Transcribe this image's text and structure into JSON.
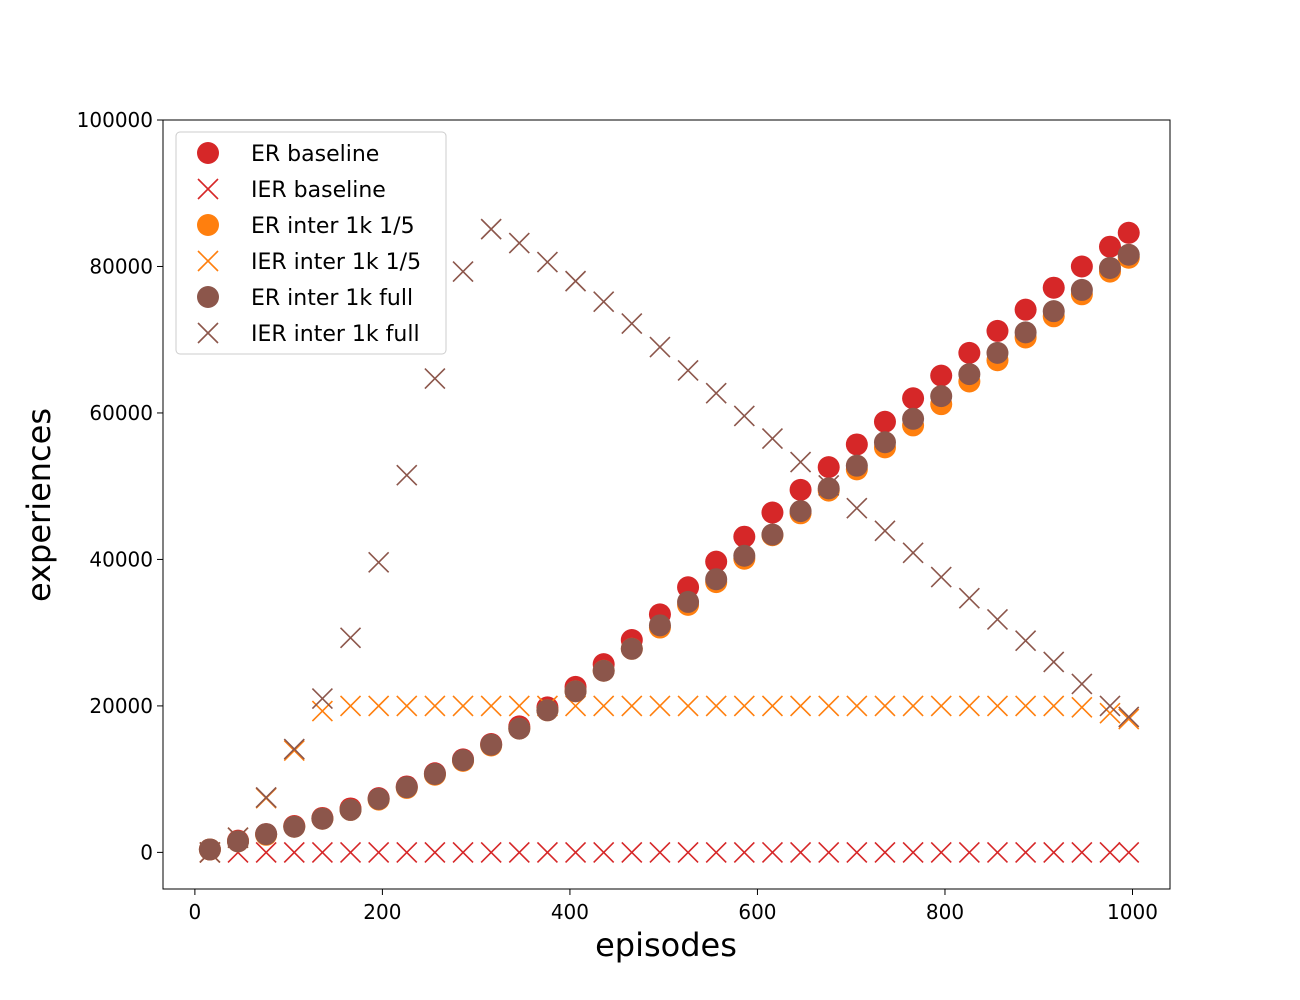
{
  "chart_data": {
    "type": "scatter",
    "xlabel": "episodes",
    "ylabel": "experiences",
    "xlim": [
      -34,
      1040
    ],
    "ylim": [
      -5000,
      100000
    ],
    "xticks": [
      0,
      200,
      400,
      600,
      800,
      1000
    ],
    "yticks": [
      0,
      20000,
      40000,
      60000,
      80000,
      100000
    ],
    "grid": false,
    "legend_position": "upper-left",
    "series": [
      {
        "name": "ER baseline",
        "marker": "circle",
        "color": "#d62728",
        "x": [
          16,
          46,
          76,
          106,
          136,
          166,
          196,
          226,
          256,
          286,
          316,
          346,
          376,
          406,
          436,
          466,
          496,
          526,
          556,
          586,
          616,
          646,
          676,
          706,
          736,
          766,
          796,
          826,
          856,
          886,
          916,
          946,
          976,
          996
        ],
        "y": [
          400,
          1600,
          2500,
          3600,
          4700,
          6000,
          7400,
          9000,
          10800,
          12700,
          14800,
          17200,
          19800,
          22600,
          25700,
          29000,
          32500,
          36200,
          39700,
          43100,
          46400,
          49500,
          52600,
          55700,
          58800,
          62000,
          65100,
          68200,
          71200,
          74100,
          77100,
          80000,
          82700,
          84600
        ]
      },
      {
        "name": "IER baseline",
        "marker": "x",
        "color": "#d62728",
        "x": [
          16,
          46,
          76,
          106,
          136,
          166,
          196,
          226,
          256,
          286,
          316,
          346,
          376,
          406,
          436,
          466,
          496,
          526,
          556,
          586,
          616,
          646,
          676,
          706,
          736,
          766,
          796,
          826,
          856,
          886,
          916,
          946,
          976,
          996
        ],
        "y": [
          0,
          0,
          0,
          0,
          0,
          0,
          0,
          0,
          0,
          0,
          0,
          0,
          0,
          0,
          0,
          0,
          0,
          0,
          0,
          0,
          0,
          0,
          0,
          0,
          0,
          0,
          0,
          0,
          0,
          0,
          0,
          0,
          0,
          0
        ]
      },
      {
        "name": "ER inter 1k 1/5",
        "marker": "circle",
        "color": "#ff7f0e",
        "x": [
          16,
          46,
          76,
          106,
          136,
          166,
          196,
          226,
          256,
          286,
          316,
          346,
          376,
          406,
          436,
          466,
          496,
          526,
          556,
          586,
          616,
          646,
          676,
          706,
          736,
          766,
          796,
          826,
          856,
          886,
          916,
          946,
          976,
          996
        ],
        "y": [
          400,
          1500,
          2400,
          3500,
          4600,
          5800,
          7200,
          8800,
          10600,
          12500,
          14600,
          16900,
          19400,
          22000,
          24800,
          27800,
          30700,
          33800,
          36900,
          40100,
          43300,
          46300,
          49400,
          52300,
          55300,
          58300,
          61200,
          64300,
          67200,
          70300,
          73200,
          76200,
          79300,
          81200
        ]
      },
      {
        "name": "IER inter 1k 1/5",
        "marker": "x",
        "color": "#ff7f0e",
        "x": [
          16,
          46,
          76,
          106,
          136,
          166,
          196,
          226,
          256,
          286,
          316,
          346,
          376,
          406,
          436,
          466,
          496,
          526,
          556,
          586,
          616,
          646,
          676,
          706,
          736,
          766,
          796,
          826,
          856,
          886,
          916,
          946,
          976,
          996
        ],
        "y": [
          0,
          2000,
          7400,
          13900,
          19300,
          20000,
          20000,
          20000,
          20000,
          20000,
          20000,
          20000,
          20000,
          20000,
          20000,
          20000,
          20000,
          20000,
          20000,
          20000,
          20000,
          20000,
          20000,
          20000,
          20000,
          20000,
          20000,
          20000,
          20000,
          20000,
          20000,
          19800,
          19000,
          18200
        ]
      },
      {
        "name": "ER inter 1k full",
        "marker": "circle",
        "color": "#8c564b",
        "x": [
          16,
          46,
          76,
          106,
          136,
          166,
          196,
          226,
          256,
          286,
          316,
          346,
          376,
          406,
          436,
          466,
          496,
          526,
          556,
          586,
          616,
          646,
          676,
          706,
          736,
          766,
          796,
          826,
          856,
          886,
          916,
          946,
          976,
          996
        ],
        "y": [
          400,
          1500,
          2500,
          3500,
          4600,
          5800,
          7300,
          8900,
          10700,
          12600,
          14700,
          16900,
          19400,
          22000,
          24800,
          27800,
          31000,
          34200,
          37300,
          40500,
          43400,
          46600,
          49700,
          52800,
          56000,
          59200,
          62300,
          65300,
          68200,
          71000,
          73900,
          76800,
          79800,
          81600
        ]
      },
      {
        "name": "IER inter 1k full",
        "marker": "x",
        "color": "#8c564b",
        "x": [
          16,
          46,
          76,
          106,
          136,
          166,
          196,
          226,
          256,
          286,
          316,
          346,
          376,
          406,
          436,
          466,
          496,
          526,
          556,
          586,
          616,
          646,
          676,
          706,
          736,
          766,
          796,
          826,
          856,
          886,
          916,
          946,
          976,
          996
        ],
        "y": [
          0,
          2000,
          7500,
          14100,
          21000,
          29300,
          39600,
          51500,
          64700,
          79300,
          85100,
          83200,
          80600,
          78000,
          75200,
          72200,
          69000,
          65800,
          62700,
          59600,
          56500,
          53300,
          50100,
          47000,
          43900,
          40900,
          37600,
          34700,
          31800,
          28900,
          26000,
          23000,
          20000,
          18500
        ]
      }
    ]
  }
}
